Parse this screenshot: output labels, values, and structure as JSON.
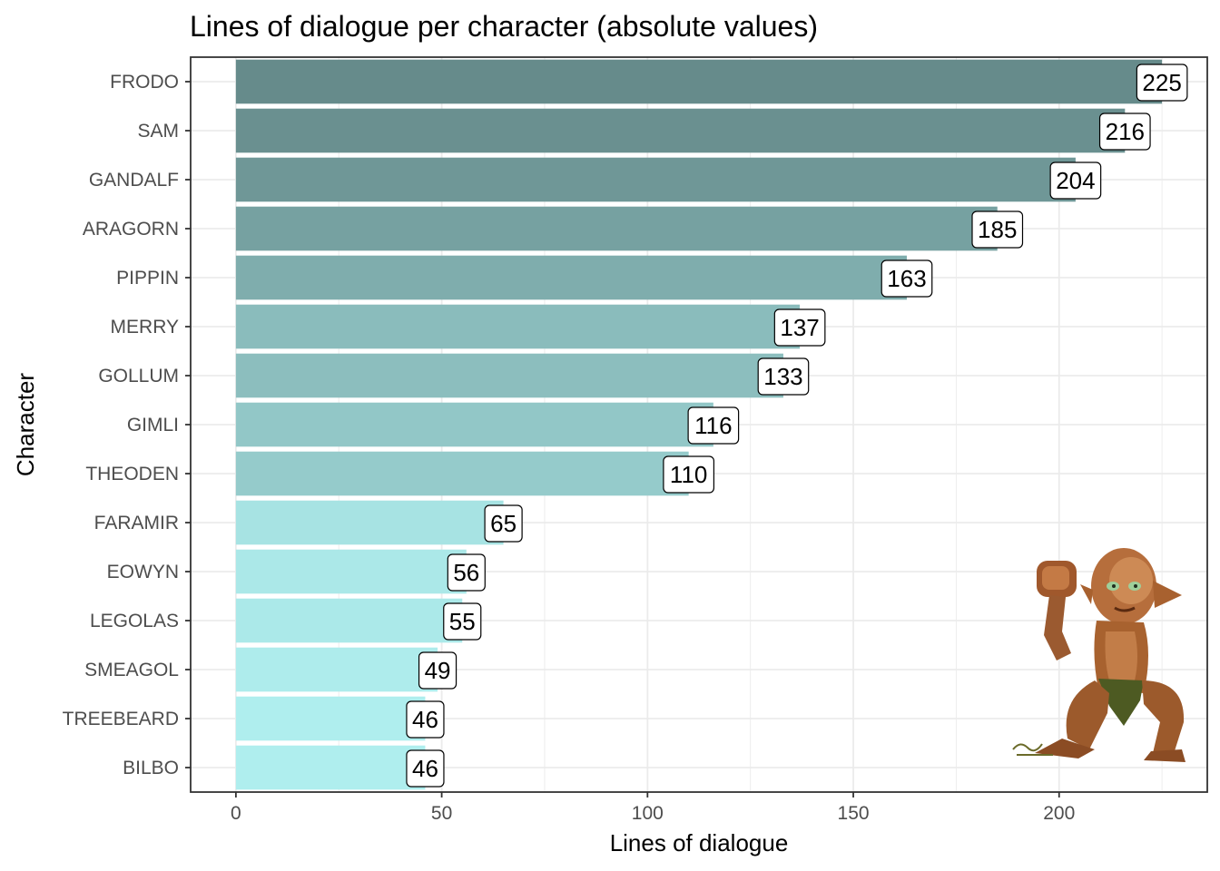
{
  "chart_data": {
    "type": "bar",
    "orientation": "horizontal",
    "title": "Lines of dialogue per character (absolute values)",
    "xlabel": "Lines of dialogue",
    "ylabel": "Character",
    "categories": [
      "FRODO",
      "SAM",
      "GANDALF",
      "ARAGORN",
      "PIPPIN",
      "MERRY",
      "GOLLUM",
      "GIMLI",
      "THEODEN",
      "FARAMIR",
      "EOWYN",
      "LEGOLAS",
      "SMEAGOL",
      "TREEBEARD",
      "BILBO"
    ],
    "values": [
      225,
      216,
      204,
      185,
      163,
      137,
      133,
      116,
      110,
      65,
      56,
      55,
      49,
      46,
      46
    ],
    "xlim": [
      -11,
      236
    ],
    "xticks": [
      0,
      50,
      100,
      150,
      200
    ],
    "grid": true,
    "legend": "none",
    "bar_color_low": "#afeeee",
    "bar_color_high": "#668b8b",
    "illustration": "gollum-pixel-art"
  }
}
